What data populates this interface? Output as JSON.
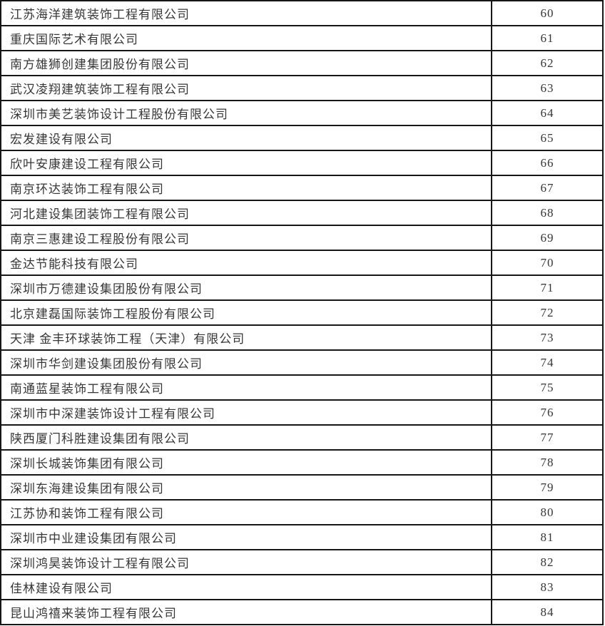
{
  "table": {
    "name": "company-ranking-table",
    "columns": [
      "company_name",
      "rank"
    ],
    "rows": [
      {
        "company": "江苏海洋建筑装饰工程有限公司",
        "rank": "60"
      },
      {
        "company": "重庆国际艺术有限公司",
        "rank": "61"
      },
      {
        "company": "南方雄狮创建集团股份有限公司",
        "rank": "62"
      },
      {
        "company": "武汉凌翔建筑装饰工程有限公司",
        "rank": "63"
      },
      {
        "company": "深圳市美艺装饰设计工程股份有限公司",
        "rank": "64"
      },
      {
        "company": "宏发建设有限公司",
        "rank": "65"
      },
      {
        "company": "欣叶安康建设工程有限公司",
        "rank": "66"
      },
      {
        "company": "南京环达装饰工程有限公司",
        "rank": "67"
      },
      {
        "company": "河北建设集团装饰工程有限公司",
        "rank": "68"
      },
      {
        "company": "南京三惠建设工程股份有限公司",
        "rank": "69"
      },
      {
        "company": "金达节能科技有限公司",
        "rank": "70"
      },
      {
        "company": "深圳市万德建设集团股份有限公司",
        "rank": "71"
      },
      {
        "company": "北京建磊国际装饰工程股份有限公司",
        "rank": "72"
      },
      {
        "company": "天津 金丰环球装饰工程（天津）有限公司",
        "rank": "73"
      },
      {
        "company": "深圳市华剑建设集团股份有限公司",
        "rank": "74"
      },
      {
        "company": "南通蓝星装饰工程有限公司",
        "rank": "75"
      },
      {
        "company": "深圳市中深建装饰设计工程有限公司",
        "rank": "76"
      },
      {
        "company": "陕西厦门科胜建设集团有限公司",
        "rank": "77"
      },
      {
        "company": "深圳长城装饰集团有限公司",
        "rank": "78"
      },
      {
        "company": "深圳东海建设集团有限公司",
        "rank": "79"
      },
      {
        "company": "江苏协和装饰工程有限公司",
        "rank": "80"
      },
      {
        "company": "深圳市中业建设集团有限公司",
        "rank": "81"
      },
      {
        "company": "深圳鸿昊装饰设计工程有限公司",
        "rank": "82"
      },
      {
        "company": "佳林建设有限公司",
        "rank": "83"
      },
      {
        "company": "昆山鸿禧来装饰工程有限公司",
        "rank": "84"
      }
    ]
  },
  "colors": {
    "border": "#161616",
    "text": "#363636",
    "background": "#ffffff"
  }
}
